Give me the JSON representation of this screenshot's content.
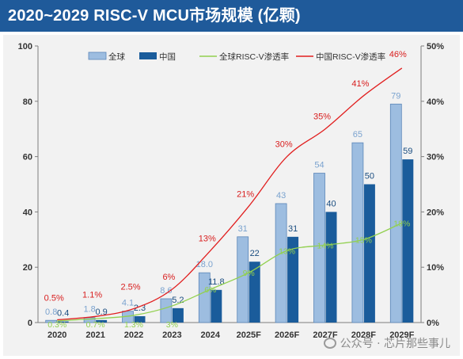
{
  "title": "2020~2029 RISC-V MCU市场规模 (亿颗)",
  "watermark": "公众号 · 芯片那些事儿",
  "legend": {
    "global_bar": "全球",
    "china_bar": "中国",
    "global_line": "全球RISC-V渗透率",
    "china_line": "中国RISC-V渗透率"
  },
  "colors": {
    "title_bg": "#1f5a9a",
    "global_bar": "#9dbde0",
    "china_bar": "#1a5c9b",
    "global_line": "#92d050",
    "china_line": "#e11f1f"
  },
  "chart_data": {
    "type": "bar",
    "categories": [
      "2020",
      "2021",
      "2022",
      "2023",
      "2024",
      "2025F",
      "2026F",
      "2027F",
      "2028F",
      "2029F"
    ],
    "series": [
      {
        "name": "全球",
        "type": "bar",
        "axis": "left",
        "values": [
          0.8,
          1.8,
          4.1,
          8.6,
          18.0,
          31,
          43,
          54,
          65,
          79
        ],
        "labels": [
          "0.8",
          "1.8",
          "4.1",
          "8.6",
          "18.0",
          "31",
          "43",
          "54",
          "65",
          "79"
        ]
      },
      {
        "name": "中国",
        "type": "bar",
        "axis": "left",
        "values": [
          0.4,
          0.9,
          2.3,
          5.2,
          11.8,
          22,
          31,
          40,
          50,
          59
        ],
        "labels": [
          "0.4",
          "0.9",
          "2.3",
          "5.2",
          "11.8",
          "22",
          "31",
          "40",
          "50",
          "59"
        ]
      },
      {
        "name": "全球RISC-V渗透率",
        "type": "line",
        "axis": "right",
        "values": [
          0.3,
          0.7,
          1.3,
          3,
          6,
          9,
          13,
          14,
          15,
          18
        ],
        "labels": [
          "0.3%",
          "0.7%",
          "1.3%",
          "3%",
          "6%",
          "9%",
          "13%",
          "14%",
          "15%",
          "18%"
        ]
      },
      {
        "name": "中国RISC-V渗透率",
        "type": "line",
        "axis": "right",
        "values": [
          0.5,
          1.1,
          2.5,
          6,
          13,
          21,
          30,
          35,
          41,
          46
        ],
        "labels": [
          "0.5%",
          "1.1%",
          "2.5%",
          "6%",
          "13%",
          "21%",
          "30%",
          "35%",
          "41%",
          "46%"
        ]
      }
    ],
    "y_left": {
      "range": [
        0,
        100
      ],
      "ticks": [
        "0",
        "20",
        "40",
        "60",
        "80",
        "100"
      ]
    },
    "y_right": {
      "range": [
        0,
        50
      ],
      "ticks": [
        "0%",
        "10%",
        "20%",
        "30%",
        "40%",
        "50%"
      ]
    },
    "grid": false,
    "legend_position": "top"
  }
}
